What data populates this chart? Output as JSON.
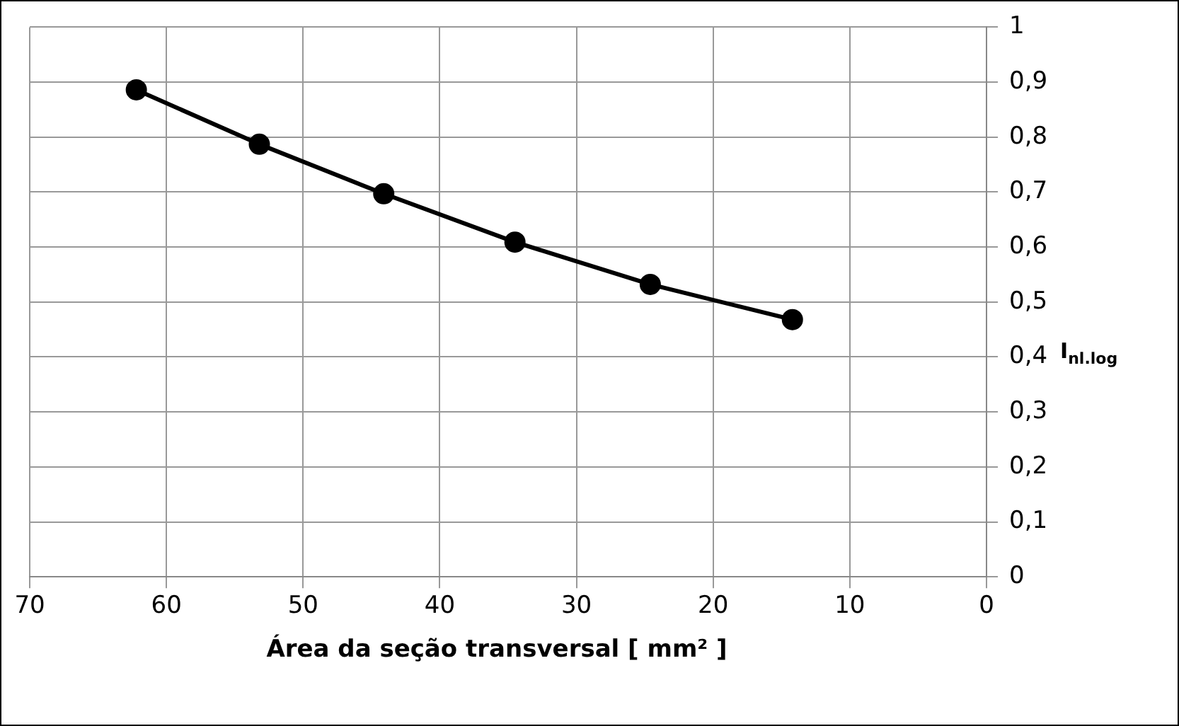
{
  "chart_data": {
    "type": "line",
    "xlabel": "Área da seção transversal [ mm² ]",
    "ylabel": "I$_{nl.log}$",
    "x": [
      62.2,
      53.2,
      44.1,
      34.5,
      24.6,
      14.2
    ],
    "series": [
      {
        "color": "#000000",
        "values": [
          0.886,
          0.787,
          0.697,
          0.609,
          0.532,
          0.468
        ]
      }
    ],
    "xlim": [
      70,
      0
    ],
    "xticks": [
      70,
      60,
      50,
      40,
      30,
      20,
      10,
      0
    ],
    "ylim": [
      0,
      1
    ],
    "yticks": [
      0,
      {
        "value": 0.1,
        "label": "0,1"
      },
      {
        "value": 0.2,
        "label": "0,2"
      },
      {
        "value": 0.3,
        "label": "0,3"
      },
      {
        "value": 0.4,
        "label": "0,4"
      },
      {
        "value": 0.5,
        "label": "0,5"
      },
      {
        "value": 0.6,
        "label": "0,6"
      },
      {
        "value": 0.7,
        "label": "0,7"
      },
      {
        "value": 0.8,
        "label": "0,8"
      },
      {
        "value": 0.9,
        "label": "0,9"
      },
      1
    ],
    "grid": true,
    "legend": false,
    "marker": "circle",
    "line_style": "solid"
  }
}
